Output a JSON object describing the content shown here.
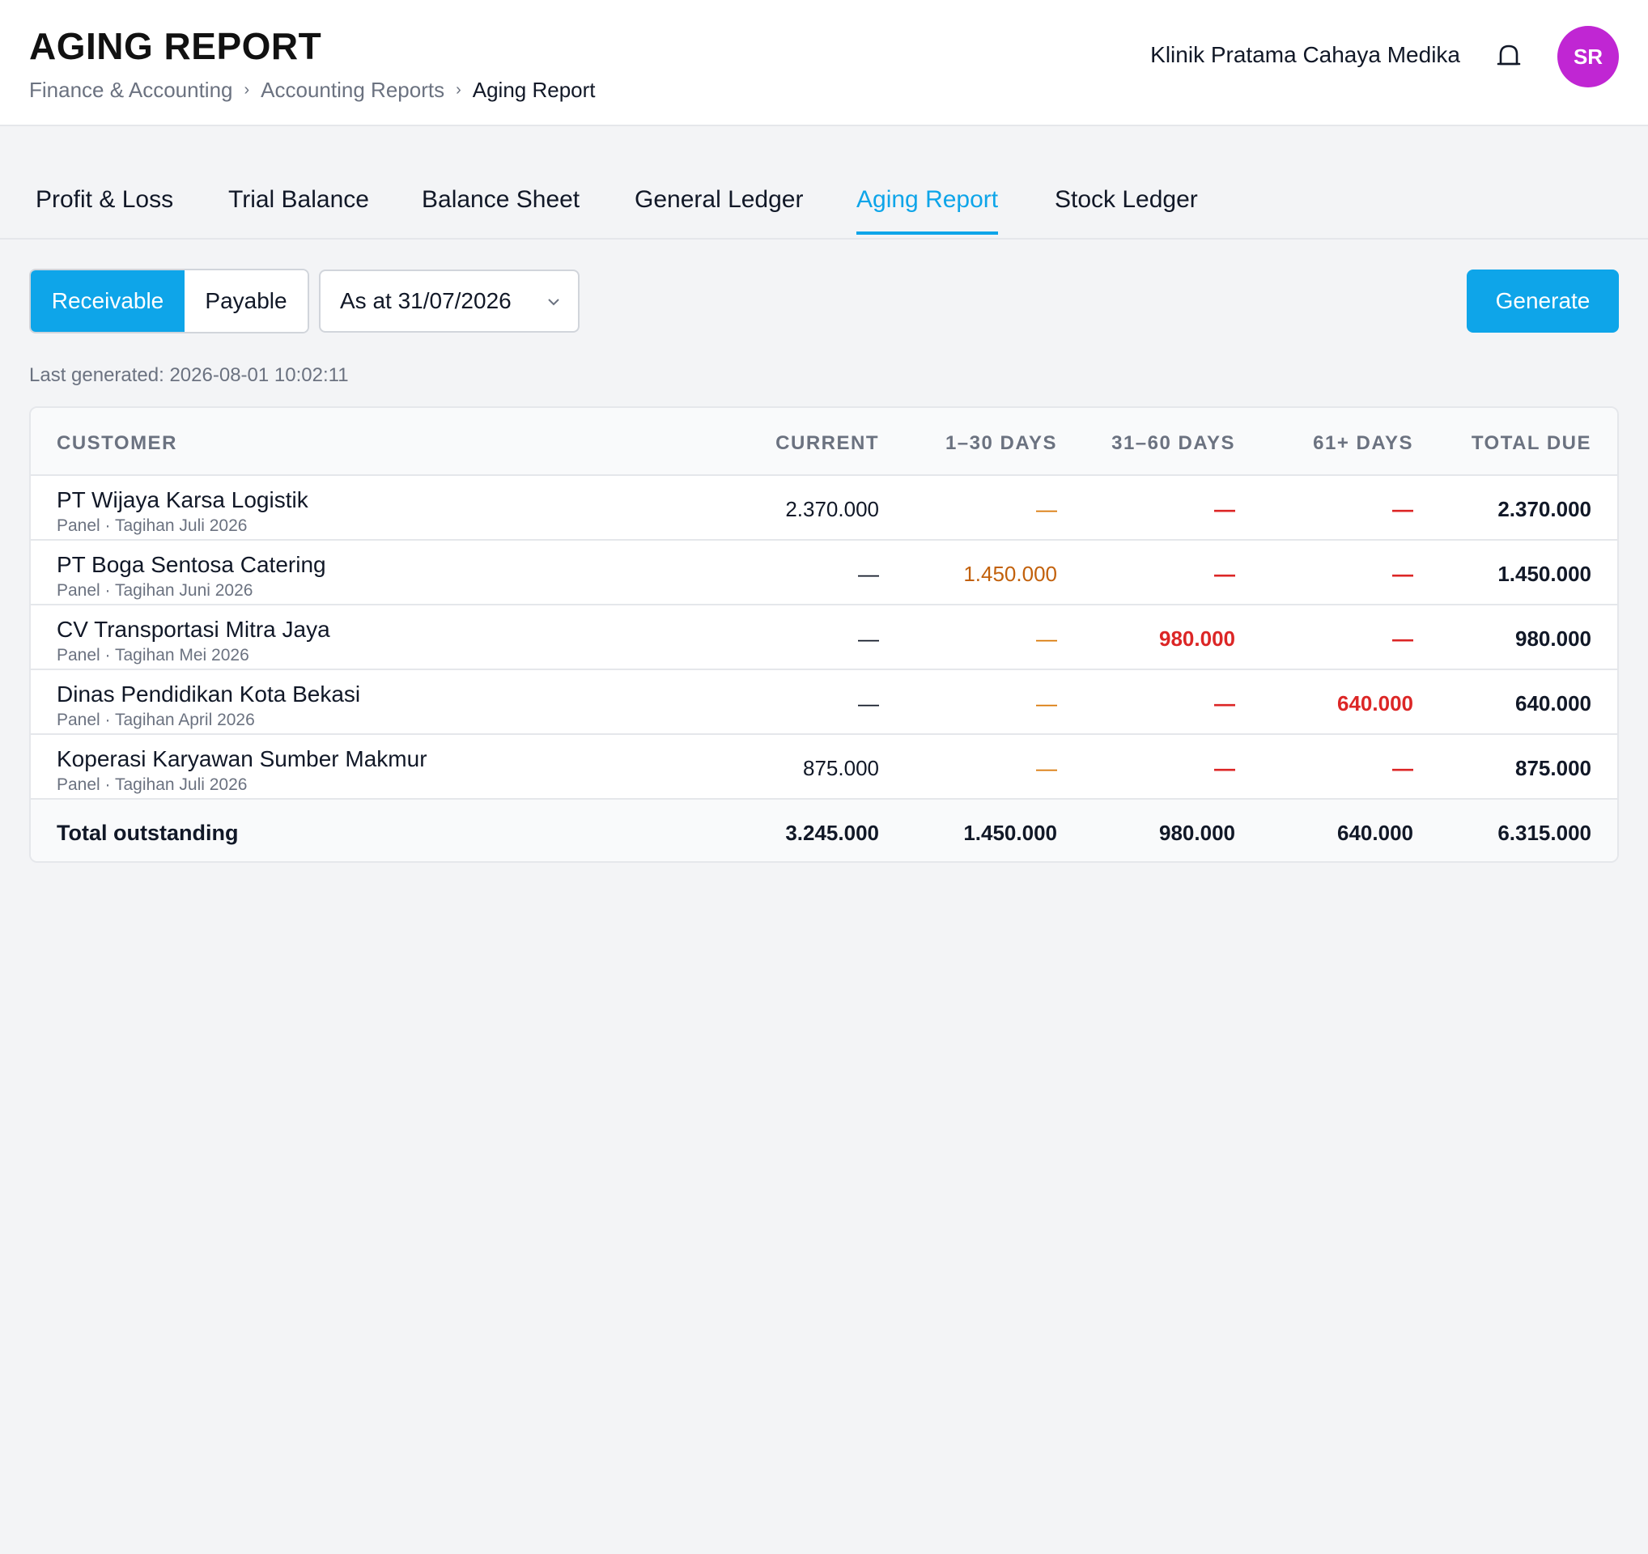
{
  "header": {
    "title": "AGING REPORT",
    "breadcrumb": [
      "Finance & Accounting",
      "Accounting Reports",
      "Aging Report"
    ],
    "org_name": "Klinik Pratama Cahaya Medika",
    "avatar_initials": "SR",
    "avatar_color": "#c026d3"
  },
  "tabs": [
    {
      "label": "Profit & Loss",
      "active": false
    },
    {
      "label": "Trial Balance",
      "active": false
    },
    {
      "label": "Balance Sheet",
      "active": false
    },
    {
      "label": "General Ledger",
      "active": false
    },
    {
      "label": "Aging Report",
      "active": true
    },
    {
      "label": "Stock Ledger",
      "active": false
    }
  ],
  "controls": {
    "segment": [
      {
        "label": "Receivable",
        "active": true
      },
      {
        "label": "Payable",
        "active": false
      }
    ],
    "date_select": "As at 31/07/2026",
    "generate_label": "Generate",
    "last_generated": "Last generated: 2026-08-01 10:02:11"
  },
  "table": {
    "columns": [
      "CUSTOMER",
      "CURRENT",
      "1–30 DAYS",
      "31–60 DAYS",
      "61+ DAYS",
      "TOTAL DUE"
    ],
    "rows": [
      {
        "name": "PT Wijaya Karsa Logistik",
        "sub": "Panel · Tagihan Juli 2026",
        "current": "2.370.000",
        "d1_30": "—",
        "d31_60": "—",
        "d61": "—",
        "total": "2.370.000"
      },
      {
        "name": "PT Boga Sentosa Catering",
        "sub": "Panel · Tagihan Juni 2026",
        "current": "—",
        "d1_30": "1.450.000",
        "d31_60": "—",
        "d61": "—",
        "total": "1.450.000"
      },
      {
        "name": "CV Transportasi Mitra Jaya",
        "sub": "Panel · Tagihan Mei 2026",
        "current": "—",
        "d1_30": "—",
        "d31_60": "980.000",
        "d61": "—",
        "total": "980.000"
      },
      {
        "name": "Dinas Pendidikan Kota Bekasi",
        "sub": "Panel · Tagihan April 2026",
        "current": "—",
        "d1_30": "—",
        "d31_60": "—",
        "d61": "640.000",
        "total": "640.000"
      },
      {
        "name": "Koperasi Karyawan Sumber Makmur",
        "sub": "Panel · Tagihan Juli 2026",
        "current": "875.000",
        "d1_30": "—",
        "d31_60": "—",
        "d61": "—",
        "total": "875.000"
      }
    ],
    "footer": {
      "label": "Total outstanding",
      "current": "3.245.000",
      "d1_30": "1.450.000",
      "d31_60": "980.000",
      "d61": "640.000",
      "total": "6.315.000"
    }
  },
  "colors": {
    "accent": "#0ea5e9",
    "bucket_1_30": "#c2610c",
    "bucket_overdue": "#dc2626"
  }
}
